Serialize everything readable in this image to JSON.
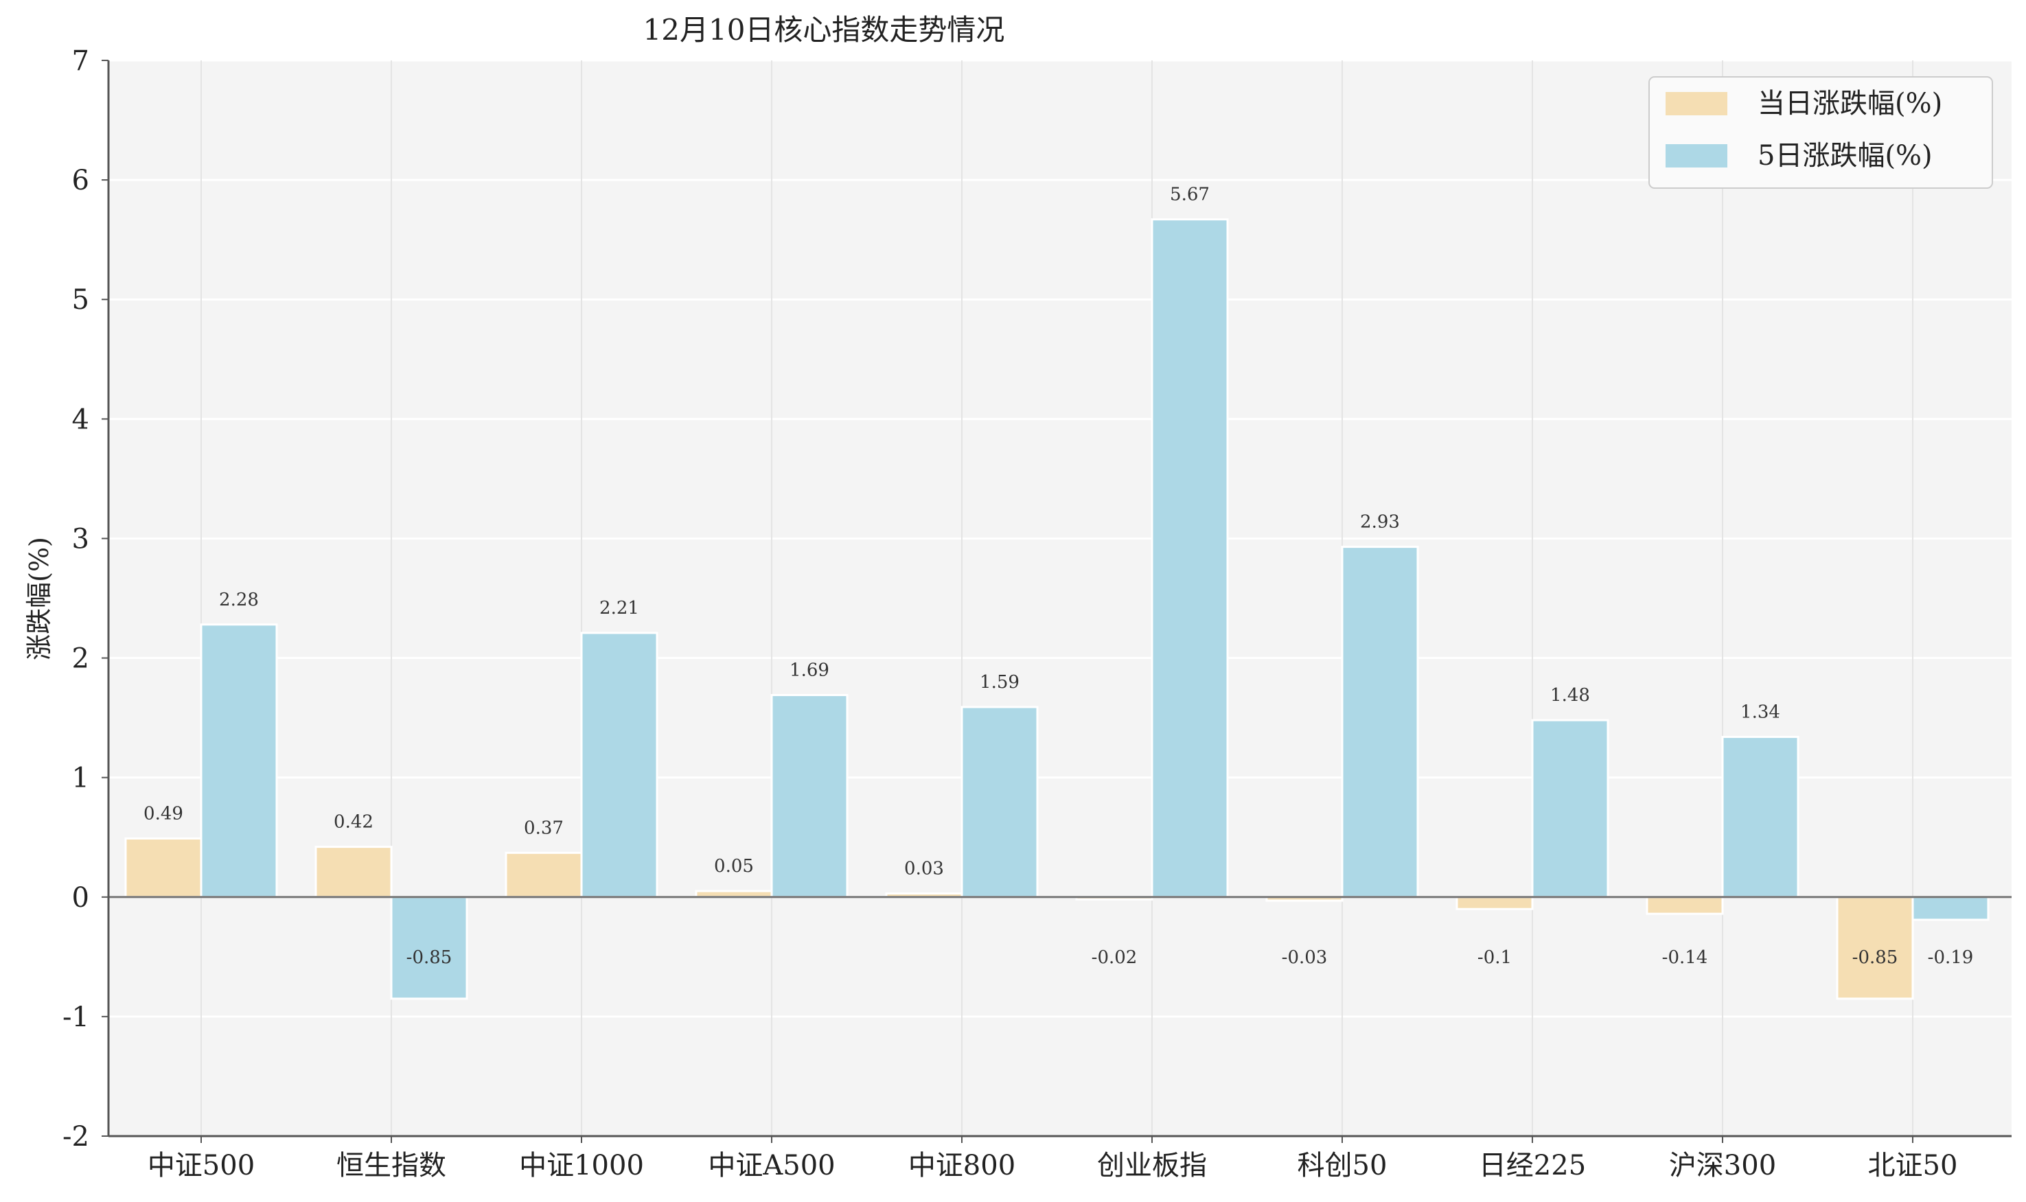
{
  "chart_data": {
    "type": "bar",
    "title": "12月10日核心指数走势情况",
    "xlabel": "",
    "ylabel": "涨跌幅(%)",
    "ylim": [
      -2,
      7
    ],
    "yticks": [
      -2,
      -1,
      0,
      1,
      2,
      3,
      4,
      5,
      6,
      7
    ],
    "grid": true,
    "legend_position": "top-right",
    "categories": [
      "中证500",
      "恒生指数",
      "中证1000",
      "中证A500",
      "中证800",
      "创业板指",
      "科创50",
      "日经225",
      "沪深300",
      "北证50"
    ],
    "series": [
      {
        "name": "当日涨跌幅(%)",
        "color": "#F5DEB3",
        "values": [
          0.49,
          0.42,
          0.37,
          0.05,
          0.03,
          -0.02,
          -0.03,
          -0.1,
          -0.14,
          -0.85
        ],
        "labels": [
          "0.49",
          "0.42",
          "0.37",
          "0.05",
          "0.03",
          "-0.02",
          "-0.03",
          "-0.1",
          "-0.14",
          "-0.85"
        ]
      },
      {
        "name": "5日涨跌幅(%)",
        "color": "#ADD8E6",
        "values": [
          2.28,
          -0.85,
          2.21,
          1.69,
          1.59,
          5.67,
          2.93,
          1.48,
          1.34,
          -0.19
        ],
        "labels": [
          "2.28",
          "-0.85",
          "2.21",
          "1.69",
          "1.59",
          "5.67",
          "2.93",
          "1.48",
          "1.34",
          "-0.19"
        ]
      }
    ]
  }
}
